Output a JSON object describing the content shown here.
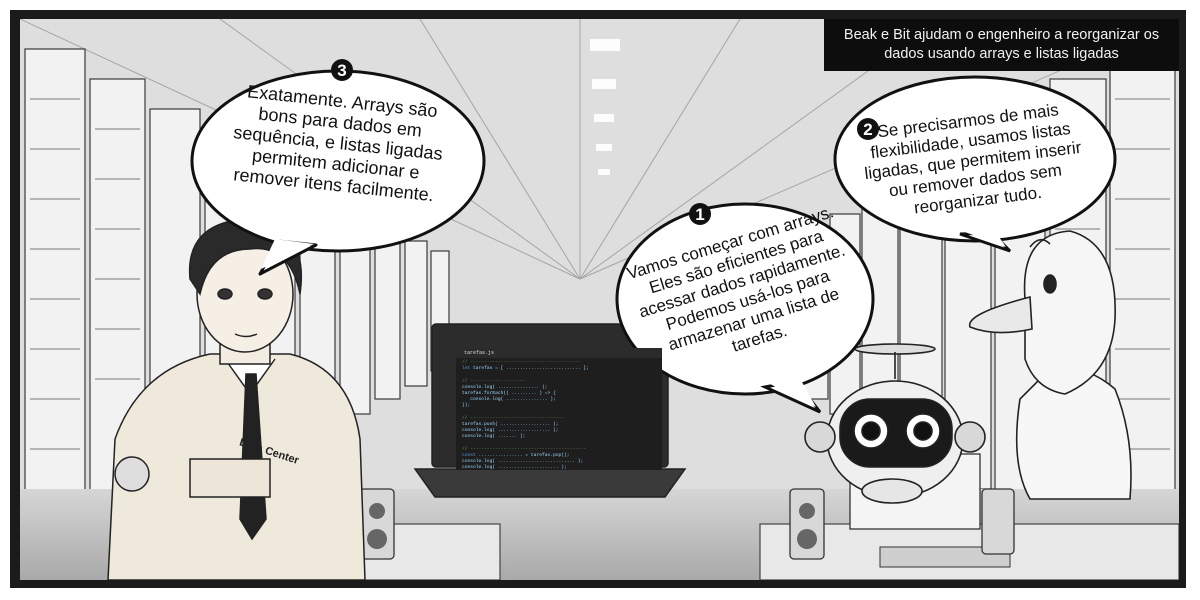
{
  "caption": "Beak e Bit ajudam o engenheiro a reorganizar os dados usando arrays e listas ligadas",
  "bubbles": [
    {
      "number": "1",
      "text": "Vamos começar com arrays. Eles são eficientes para acessar dados rapidamente. Podemos usá-los para armazenar uma lista de tarefas."
    },
    {
      "number": "2",
      "text": "Se precisarmos de mais flexibilidade, usamos listas ligadas, que permitem inserir ou remover dados sem reorganizar tudo."
    },
    {
      "number": "3",
      "text": "Exatamente. Arrays são bons para dados em sequência, e listas ligadas permitem adicionar e remover itens facilmente."
    }
  ],
  "badge_text": "Data Center",
  "editor": {
    "tab": "tarefas.js"
  },
  "colors": {
    "frame": "#1b1b1b",
    "caption_bg": "#0d0d0d",
    "bubble_fill": "#ffffff",
    "bubble_stroke": "#111111"
  }
}
